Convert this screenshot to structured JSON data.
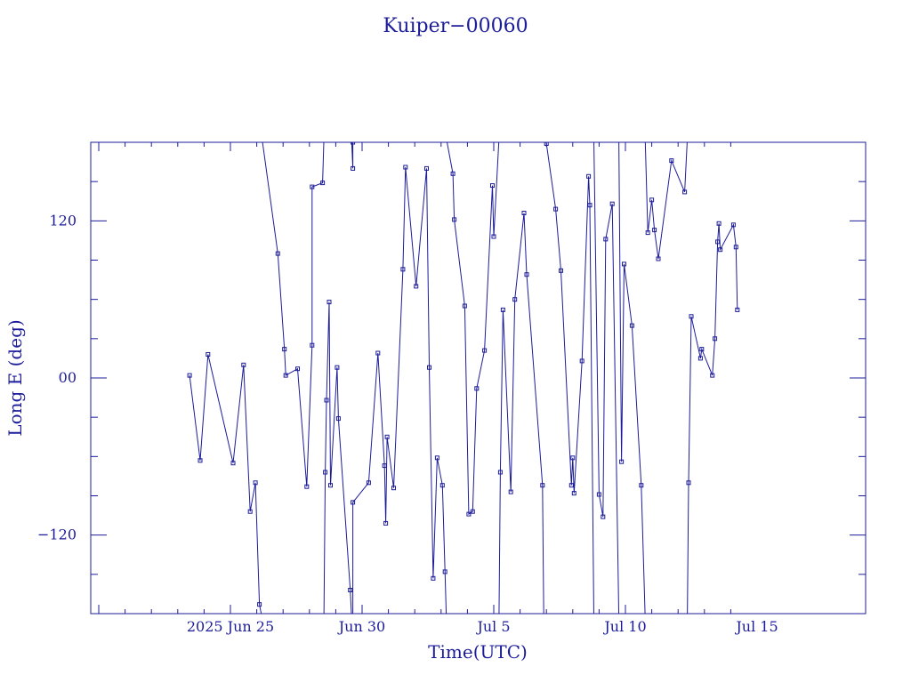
{
  "chart_data": {
    "type": "line",
    "title": "Kuiper−00060",
    "xlabel": "Time(UTC)",
    "ylabel": "Long E (deg)",
    "x_unit": "days from 2025 Jun 25 00:00 UTC",
    "xlim": [
      -7.25,
      19.25
    ],
    "ylim": [
      -180,
      180
    ],
    "xticks": [
      {
        "v": 0,
        "label": "2025 Jun 25"
      },
      {
        "v": 5,
        "label": "Jun 30"
      },
      {
        "v": 10,
        "label": "Jul 5"
      },
      {
        "v": 15,
        "label": "Jul 10"
      },
      {
        "v": 20,
        "label": "Jul 15"
      }
    ],
    "yticks": [
      {
        "v": 120,
        "label": "120"
      },
      {
        "v": 0,
        "label": "00"
      },
      {
        "v": -120,
        "label": "−120"
      }
    ],
    "color": "#1c1c9a",
    "series": [
      {
        "name": "",
        "points": [
          [
            -1.55,
            2
          ],
          [
            -1.15,
            -63
          ],
          [
            -0.85,
            18
          ],
          [
            0.1,
            -65
          ],
          [
            0.5,
            10
          ],
          [
            0.75,
            -102
          ],
          [
            0.95,
            -80
          ],
          [
            1.1,
            -173
          ],
          [
            1.2,
            -183
          ]
        ]
      },
      {
        "name": "",
        "points": [
          [
            1.2,
            183
          ],
          [
            1.8,
            95
          ],
          [
            2.05,
            22
          ],
          [
            2.1,
            2
          ],
          [
            2.55,
            7
          ],
          [
            2.9,
            -83
          ],
          [
            3.1,
            25
          ],
          [
            3.1,
            146
          ],
          [
            3.5,
            149
          ],
          [
            3.55,
            183
          ]
        ]
      },
      {
        "name": "",
        "points": [
          [
            3.55,
            -183
          ],
          [
            3.6,
            -72
          ],
          [
            3.65,
            -17
          ],
          [
            3.75,
            58
          ],
          [
            3.8,
            -82
          ],
          [
            4.05,
            8
          ],
          [
            4.1,
            -31
          ],
          [
            4.55,
            -162
          ],
          [
            4.6,
            -183
          ]
        ]
      },
      {
        "name": "",
        "points": [
          [
            4.6,
            183
          ],
          [
            4.65,
            160
          ],
          [
            4.65,
            180
          ]
        ]
      },
      {
        "name": "",
        "points": [
          [
            4.65,
            -183
          ],
          [
            4.65,
            -95
          ],
          [
            5.25,
            -80
          ],
          [
            5.6,
            19
          ],
          [
            5.85,
            -67
          ],
          [
            5.9,
            -111
          ],
          [
            5.95,
            -45
          ],
          [
            6.2,
            -84
          ],
          [
            6.55,
            83
          ],
          [
            6.65,
            161
          ],
          [
            7.05,
            70
          ],
          [
            7.45,
            160
          ],
          [
            7.55,
            8
          ],
          [
            7.7,
            -153
          ],
          [
            7.85,
            -61
          ],
          [
            8.05,
            -82
          ],
          [
            8.15,
            -148
          ],
          [
            8.2,
            -183
          ]
        ]
      },
      {
        "name": "",
        "points": [
          [
            8.2,
            183
          ],
          [
            8.45,
            156
          ],
          [
            8.5,
            121
          ],
          [
            8.9,
            55
          ],
          [
            9.05,
            -104
          ],
          [
            9.2,
            -102
          ],
          [
            9.35,
            -8
          ],
          [
            9.65,
            21
          ],
          [
            9.95,
            147
          ],
          [
            10.0,
            108
          ],
          [
            10.2,
            183
          ]
        ]
      },
      {
        "name": "",
        "points": [
          [
            10.2,
            -183
          ],
          [
            10.25,
            -72
          ],
          [
            10.35,
            52
          ],
          [
            10.65,
            -87
          ],
          [
            10.8,
            60
          ],
          [
            11.15,
            126
          ],
          [
            11.25,
            79
          ],
          [
            11.85,
            -82
          ],
          [
            11.9,
            -183
          ]
        ]
      },
      {
        "name": "",
        "points": [
          [
            11.9,
            183
          ],
          [
            12.0,
            179
          ],
          [
            12.35,
            129
          ],
          [
            12.55,
            82
          ],
          [
            12.95,
            -82
          ],
          [
            13.0,
            -61
          ],
          [
            13.05,
            -88
          ],
          [
            13.35,
            13
          ],
          [
            13.6,
            154
          ],
          [
            13.65,
            132
          ],
          [
            13.8,
            -183
          ]
        ]
      },
      {
        "name": "",
        "points": [
          [
            13.8,
            183
          ],
          [
            14.0,
            -89
          ],
          [
            14.15,
            -106
          ],
          [
            14.25,
            106
          ],
          [
            14.5,
            133
          ],
          [
            14.75,
            -183
          ]
        ]
      },
      {
        "name": "",
        "points": [
          [
            14.75,
            183
          ],
          [
            14.85,
            -64
          ],
          [
            14.95,
            87
          ],
          [
            15.25,
            40
          ],
          [
            15.6,
            -82
          ],
          [
            15.75,
            -183
          ]
        ]
      },
      {
        "name": "",
        "points": [
          [
            15.75,
            183
          ],
          [
            15.85,
            111
          ],
          [
            16.0,
            136
          ],
          [
            16.1,
            113
          ],
          [
            16.25,
            91
          ],
          [
            16.75,
            166
          ],
          [
            17.25,
            142
          ],
          [
            17.35,
            183
          ]
        ]
      },
      {
        "name": "",
        "points": [
          [
            17.35,
            -183
          ],
          [
            17.4,
            -80
          ],
          [
            17.5,
            47
          ],
          [
            17.85,
            15
          ],
          [
            17.9,
            22
          ],
          [
            18.3,
            2
          ],
          [
            18.4,
            30
          ],
          [
            18.5,
            104
          ],
          [
            18.55,
            118
          ],
          [
            18.6,
            98
          ],
          [
            19.1,
            117
          ],
          [
            19.2,
            100
          ],
          [
            19.25,
            52
          ]
        ]
      }
    ]
  }
}
